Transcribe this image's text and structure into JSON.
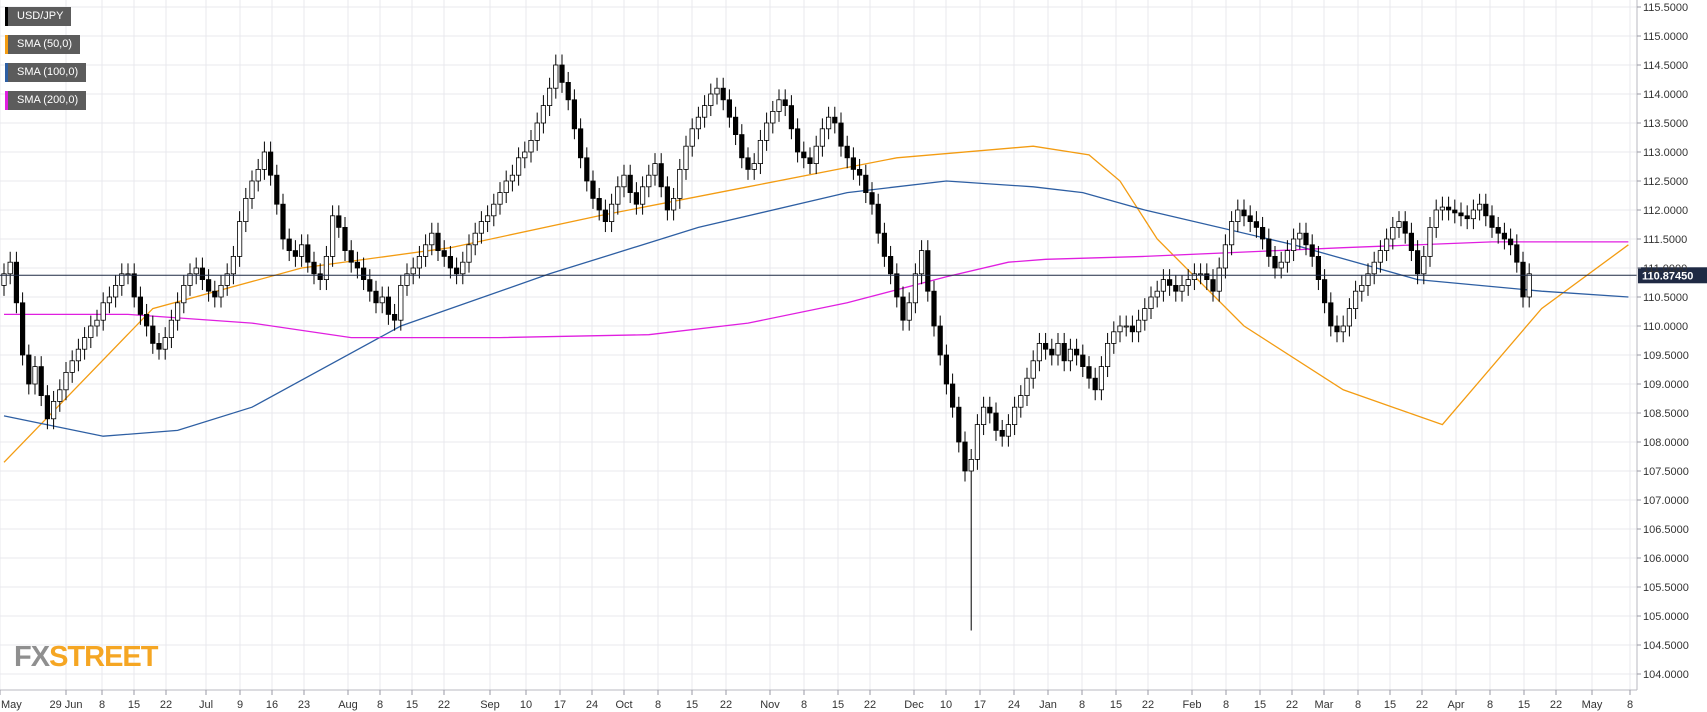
{
  "legend": [
    {
      "label": "USD/JPY",
      "color": "#000000"
    },
    {
      "label": "SMA (50,0)",
      "color": "#f39c12"
    },
    {
      "label": "SMA (100,0)",
      "color": "#2e5fa3"
    },
    {
      "label": "SMA (200,0)",
      "color": "#e01fe0"
    }
  ],
  "logo": {
    "part1": "FX",
    "part2": "STREET"
  },
  "colors": {
    "sma50": "#f39c12",
    "sma100": "#2e5fa3",
    "sma200": "#e01fe0",
    "price_tag": "#1f2a44",
    "grid": "#e8e8ee"
  },
  "chart_data": {
    "type": "candlestick",
    "title": "",
    "ylim": [
      103.75,
      115.75
    ],
    "yticks": [
      "104.0000",
      "104.5000",
      "105.0000",
      "105.5000",
      "106.0000",
      "106.5000",
      "107.0000",
      "107.5000",
      "108.0000",
      "108.5000",
      "109.0000",
      "109.5000",
      "110.0000",
      "110.5000",
      "111.0000",
      "111.5000",
      "112.0000",
      "112.5000",
      "113.0000",
      "113.5000",
      "114.0000",
      "114.5000",
      "115.0000",
      "115.5000"
    ],
    "xticks": [
      "May",
      "29 Jun",
      "8",
      "15",
      "22",
      "Jul",
      "9",
      "16",
      "23",
      "Aug",
      "8",
      "15",
      "22",
      "Sep",
      "10",
      "17",
      "24",
      "Oct",
      "8",
      "15",
      "22",
      "Nov",
      "8",
      "15",
      "22",
      "Dec",
      "10",
      "17",
      "24",
      "Jan",
      "8",
      "15",
      "22",
      "Feb",
      "8",
      "15",
      "22",
      "Mar",
      "8",
      "15",
      "22",
      "Apr",
      "8",
      "15",
      "22",
      "May",
      "8"
    ],
    "current_price": "110.87450",
    "current_value": 110.8745,
    "candles": {
      "close": [
        110.9,
        111.1,
        110.4,
        109.5,
        109.0,
        109.3,
        108.8,
        108.4,
        108.7,
        108.9,
        109.2,
        109.4,
        109.6,
        109.8,
        110.0,
        110.1,
        110.4,
        110.5,
        110.7,
        110.9,
        110.9,
        110.5,
        110.2,
        110.0,
        109.7,
        109.6,
        109.8,
        110.1,
        110.4,
        110.7,
        110.9,
        111.0,
        110.8,
        110.6,
        110.5,
        110.7,
        110.9,
        111.2,
        111.8,
        112.2,
        112.5,
        112.7,
        113.0,
        112.6,
        112.1,
        111.5,
        111.3,
        111.2,
        111.4,
        111.1,
        110.9,
        110.8,
        111.2,
        111.9,
        111.7,
        111.3,
        111.1,
        111.0,
        110.8,
        110.6,
        110.4,
        110.5,
        110.2,
        110.1,
        110.7,
        110.9,
        111.0,
        111.2,
        111.4,
        111.6,
        111.3,
        111.2,
        111.0,
        110.9,
        111.1,
        111.4,
        111.6,
        111.8,
        111.9,
        112.1,
        112.3,
        112.5,
        112.6,
        112.9,
        113.0,
        113.2,
        113.5,
        113.8,
        114.1,
        114.5,
        114.2,
        113.9,
        113.4,
        112.9,
        112.5,
        112.2,
        112.0,
        111.8,
        112.1,
        112.4,
        112.6,
        112.3,
        112.1,
        112.4,
        112.6,
        112.8,
        112.4,
        112.0,
        112.2,
        112.7,
        113.1,
        113.4,
        113.6,
        113.8,
        114.0,
        114.1,
        113.9,
        113.6,
        113.3,
        112.9,
        112.7,
        112.8,
        113.2,
        113.5,
        113.7,
        113.9,
        113.8,
        113.4,
        113.0,
        112.9,
        112.8,
        113.1,
        113.4,
        113.6,
        113.5,
        113.1,
        112.9,
        112.7,
        112.6,
        112.3,
        112.1,
        111.6,
        111.2,
        110.9,
        110.5,
        110.1,
        110.4,
        110.9,
        111.3,
        110.6,
        110.0,
        109.5,
        109.0,
        108.6,
        108.0,
        107.5,
        107.7,
        108.3,
        108.6,
        108.5,
        108.2,
        108.1,
        108.3,
        108.6,
        108.8,
        109.1,
        109.4,
        109.7,
        109.6,
        109.5,
        109.7,
        109.4,
        109.6,
        109.5,
        109.3,
        109.1,
        108.9,
        109.3,
        109.7,
        109.9,
        110.0,
        110.0,
        109.9,
        110.1,
        110.3,
        110.5,
        110.6,
        110.8,
        110.7,
        110.6,
        110.7,
        110.8,
        110.9,
        110.9,
        110.8,
        110.6,
        111.0,
        111.4,
        111.8,
        112.0,
        111.9,
        111.8,
        111.7,
        111.5,
        111.2,
        111.0,
        111.1,
        111.3,
        111.5,
        111.6,
        111.4,
        111.2,
        110.8,
        110.4,
        110.0,
        109.9,
        110.0,
        110.3,
        110.6,
        110.7,
        110.9,
        111.1,
        111.3,
        111.5,
        111.7,
        111.8,
        111.6,
        111.3,
        110.9,
        111.2,
        111.7,
        112.0,
        112.05,
        112.0,
        111.95,
        111.9,
        111.85,
        112.0,
        112.1,
        111.9,
        111.7,
        111.6,
        111.5,
        111.4,
        111.1,
        110.5,
        110.9
      ]
    },
    "series": [
      {
        "name": "SMA (50,0)",
        "color": "#f39c12",
        "x": [
          0,
          24,
          48,
          72,
          96,
          120,
          144,
          166,
          175,
          180,
          186,
          200,
          216,
          232,
          248,
          262
        ],
        "values": [
          107.65,
          110.3,
          111.0,
          111.35,
          111.9,
          112.4,
          112.9,
          113.1,
          112.95,
          112.5,
          111.5,
          110.0,
          108.9,
          108.3,
          110.3,
          111.4
        ]
      },
      {
        "name": "SMA (100,0)",
        "color": "#2e5fa3",
        "x": [
          0,
          16,
          28,
          40,
          64,
          88,
          112,
          136,
          152,
          166,
          174,
          184,
          208,
          228,
          248,
          262
        ],
        "values": [
          108.45,
          108.1,
          108.2,
          108.6,
          110.0,
          110.9,
          111.7,
          112.3,
          112.5,
          112.4,
          112.3,
          112.0,
          111.4,
          110.8,
          110.6,
          110.5
        ]
      },
      {
        "name": "SMA (200,0)",
        "color": "#e01fe0",
        "x": [
          0,
          20,
          40,
          56,
          80,
          104,
          120,
          136,
          152,
          162,
          168,
          184,
          216,
          240,
          262
        ],
        "values": [
          110.2,
          110.2,
          110.05,
          109.8,
          109.8,
          109.85,
          110.05,
          110.4,
          110.85,
          111.1,
          111.15,
          111.2,
          111.35,
          111.45,
          111.45
        ]
      }
    ]
  }
}
